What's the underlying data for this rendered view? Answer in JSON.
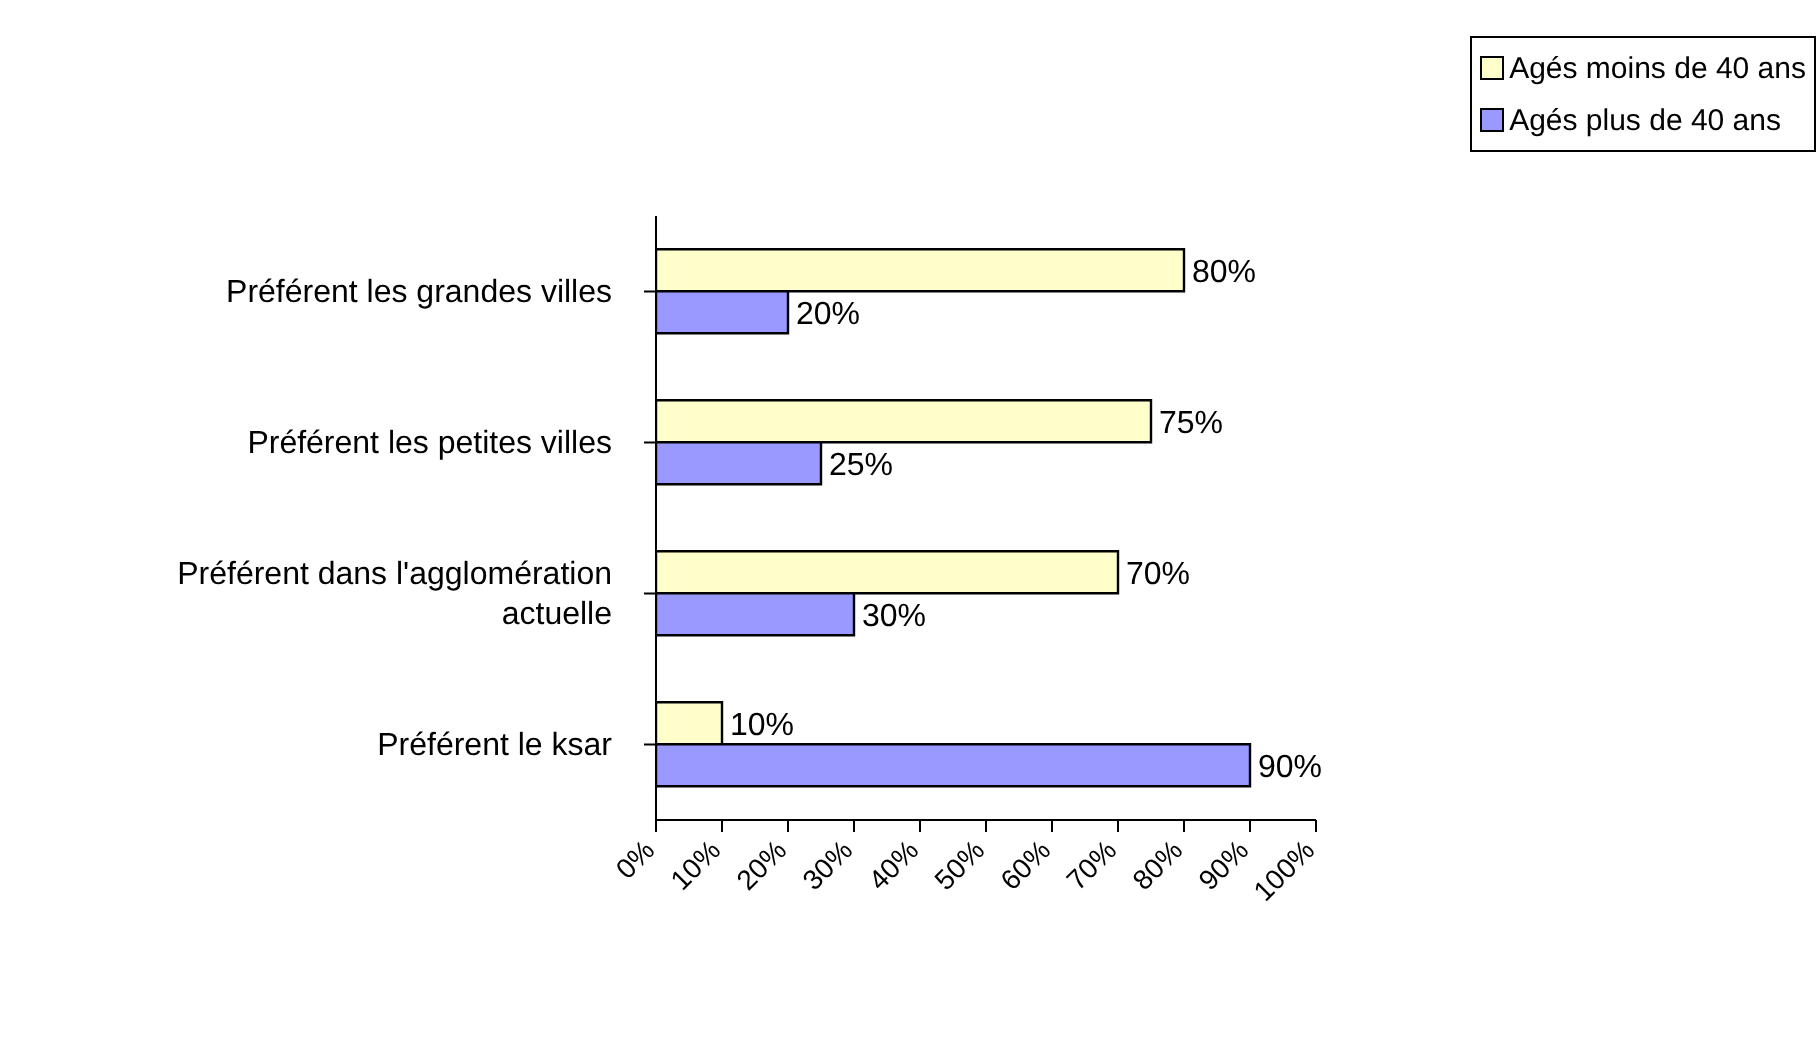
{
  "chart_data": {
    "type": "bar",
    "orientation": "horizontal",
    "categories": [
      "Préférent les grandes villes",
      "Préférent les petites villes",
      "Préférent dans l'agglomération actuelle",
      "Préférent le ksar"
    ],
    "series": [
      {
        "name": "Agés moins de 40 ans",
        "color": "#ffffcc",
        "values": [
          80,
          75,
          70,
          10
        ],
        "value_labels": [
          "80%",
          "75%",
          "70%",
          "10%"
        ]
      },
      {
        "name": "Agés plus de 40 ans",
        "color": "#9999ff",
        "values": [
          20,
          25,
          30,
          90
        ],
        "value_labels": [
          "20%",
          "25%",
          "30%",
          "90%"
        ]
      }
    ],
    "xlim": [
      0,
      100
    ],
    "xticks": [
      {
        "value": 0,
        "label": "0%"
      },
      {
        "value": 10,
        "label": "10%"
      },
      {
        "value": 20,
        "label": "20%"
      },
      {
        "value": 30,
        "label": "30%"
      },
      {
        "value": 40,
        "label": "40%"
      },
      {
        "value": 50,
        "label": "50%"
      },
      {
        "value": 60,
        "label": "60%"
      },
      {
        "value": 70,
        "label": "70%"
      },
      {
        "value": 80,
        "label": "80%"
      },
      {
        "value": 90,
        "label": "90%"
      },
      {
        "value": 100,
        "label": "100%"
      }
    ],
    "legend": "top right",
    "grid": false
  }
}
